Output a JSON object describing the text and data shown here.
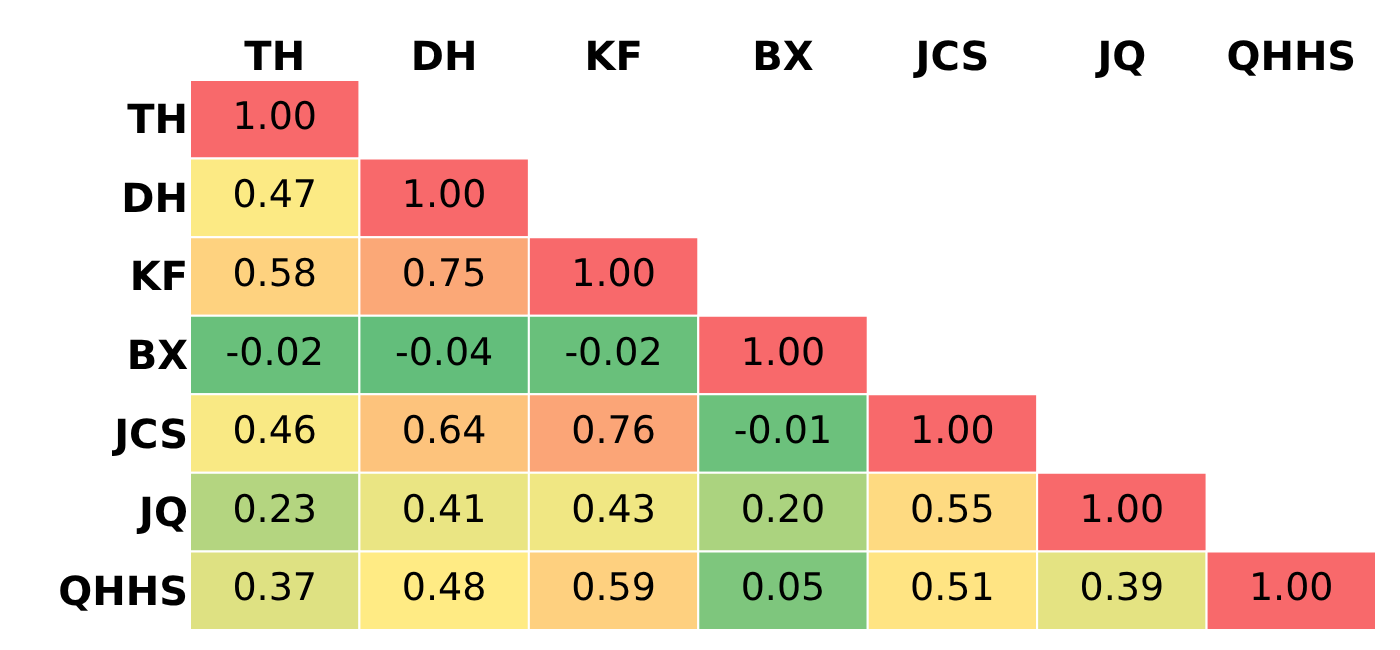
{
  "chart_data": {
    "type": "heatmap",
    "categories": [
      "TH",
      "DH",
      "KF",
      "BX",
      "JCS",
      "JQ",
      "QHHS"
    ],
    "y_categories": [
      "TH",
      "DH",
      "KF",
      "BX",
      "JCS",
      "JQ",
      "QHHS"
    ],
    "cells": [
      [
        1.0,
        null,
        null,
        null,
        null,
        null,
        null
      ],
      [
        0.47,
        1.0,
        null,
        null,
        null,
        null,
        null
      ],
      [
        0.58,
        0.75,
        1.0,
        null,
        null,
        null,
        null
      ],
      [
        -0.02,
        -0.04,
        -0.02,
        1.0,
        null,
        null,
        null
      ],
      [
        0.46,
        0.64,
        0.76,
        -0.01,
        1.0,
        null,
        null
      ],
      [
        0.23,
        0.41,
        0.43,
        0.2,
        0.55,
        1.0,
        null
      ],
      [
        0.37,
        0.48,
        0.59,
        0.05,
        0.51,
        0.39,
        1.0
      ]
    ],
    "cell_labels": [
      [
        "1.00",
        null,
        null,
        null,
        null,
        null,
        null
      ],
      [
        "0.47",
        "1.00",
        null,
        null,
        null,
        null,
        null
      ],
      [
        "0.58",
        "0.75",
        "1.00",
        null,
        null,
        null,
        null
      ],
      [
        "-0.02",
        "-0.04",
        "-0.02",
        "1.00",
        null,
        null,
        null
      ],
      [
        "0.46",
        "0.64",
        "0.76",
        "-0.01",
        "1.00",
        null,
        null
      ],
      [
        "0.23",
        "0.41",
        "0.43",
        "0.20",
        "0.55",
        "1.00",
        null
      ],
      [
        "0.37",
        "0.48",
        "0.59",
        "0.05",
        "0.51",
        "0.39",
        "1.00"
      ]
    ]
  }
}
